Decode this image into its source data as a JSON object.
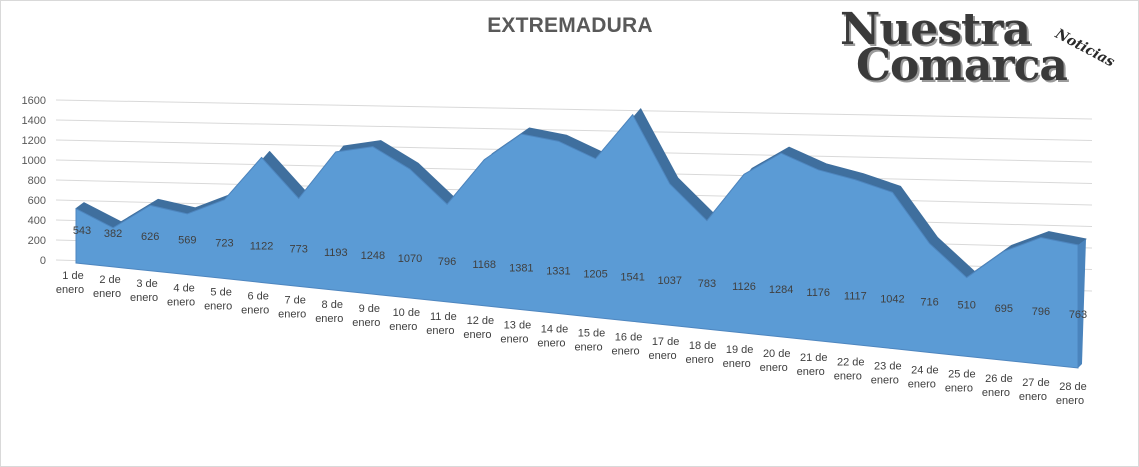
{
  "logo": {
    "line1": "Nuestra",
    "line2": "Comarca",
    "tag": "Noticias"
  },
  "chart_data": {
    "type": "area",
    "title": "EXTREMADURA",
    "xlabel": "",
    "ylabel": "",
    "ylim": [
      0,
      1600
    ],
    "yticks": [
      0,
      200,
      400,
      600,
      800,
      1000,
      1200,
      1400,
      1600
    ],
    "grid": true,
    "legend": "none",
    "color": "#5b9bd5",
    "categories": [
      "1 de enero",
      "2 de enero",
      "3 de enero",
      "4 de enero",
      "5 de enero",
      "6 de enero",
      "7 de enero",
      "8 de enero",
      "9 de enero",
      "10 de enero",
      "11 de enero",
      "12 de enero",
      "13 de enero",
      "14 de enero",
      "15 de enero",
      "16 de enero",
      "17 de enero",
      "18 de enero",
      "19 de enero",
      "20 de enero",
      "21 de enero",
      "22 de enero",
      "23 de enero",
      "24 de enero",
      "25 de enero",
      "26 de enero",
      "27 de enero",
      "28 de enero"
    ],
    "values": [
      543,
      382,
      626,
      569,
      723,
      1122,
      773,
      1193,
      1248,
      1070,
      796,
      1168,
      1381,
      1331,
      1205,
      1541,
      1037,
      783,
      1126,
      1284,
      1176,
      1117,
      1042,
      716,
      510,
      695,
      796,
      763
    ]
  }
}
